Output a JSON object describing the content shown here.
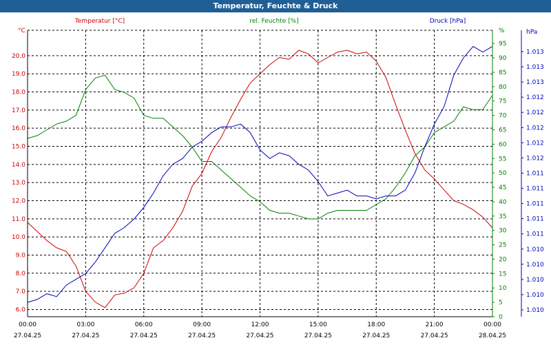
{
  "window": {
    "title": "Temperatur, Feuchte & Druck"
  },
  "chart_data": {
    "type": "line",
    "title": "Temperatur, Feuchte & Druck",
    "x_ticks": [
      {
        "time": "00:00",
        "date": "27.04.25"
      },
      {
        "time": "03:00",
        "date": "27.04.25"
      },
      {
        "time": "06:00",
        "date": "27.04.25"
      },
      {
        "time": "09:00",
        "date": "27.04.25"
      },
      {
        "time": "12:00",
        "date": "27.04.25"
      },
      {
        "time": "15:00",
        "date": "27.04.25"
      },
      {
        "time": "18:00",
        "date": "27.04.25"
      },
      {
        "time": "21:00",
        "date": "27.04.25"
      },
      {
        "time": "00:00",
        "date": "28.04.25"
      }
    ],
    "x_range_hours": [
      0,
      24
    ],
    "axes": {
      "left": {
        "unit": "°C",
        "min": 5.6,
        "max": 21.4,
        "ticks": [
          "6.0",
          "7.0",
          "8.0",
          "9.0",
          "10.0",
          "11.0",
          "12.0",
          "13.0",
          "14.0",
          "15.0",
          "16.0",
          "17.0",
          "18.0",
          "19.0",
          "20.0"
        ]
      },
      "right": {
        "unit": "%",
        "min": 0,
        "max": 99.6,
        "ticks": [
          "0",
          "5",
          "10",
          "15",
          "20",
          "25",
          "30",
          "35",
          "40",
          "45",
          "50",
          "55",
          "60",
          "65",
          "70",
          "75",
          "80",
          "85",
          "90",
          "95"
        ]
      },
      "far_right": {
        "unit": "hPa",
        "ticks": [
          "1.010",
          "1.010",
          "1.010",
          "1.010",
          "1.010",
          "1.011",
          "1.011",
          "1.011",
          "1.011",
          "1.011",
          "1.012",
          "1.012",
          "1.012",
          "1.012",
          "1.012",
          "1.013",
          "1.013",
          "1.013"
        ]
      }
    },
    "series": [
      {
        "name": "Temperatur [°C]",
        "color": "#cc0000",
        "axis": "left",
        "x": [
          0,
          0.5,
          1,
          1.5,
          2,
          2.5,
          3,
          3.5,
          4,
          4.5,
          5,
          5.5,
          6,
          6.5,
          7,
          7.5,
          8,
          8.5,
          9,
          9.5,
          10,
          10.5,
          11,
          11.5,
          12,
          12.5,
          13,
          13.5,
          14,
          14.5,
          15,
          15.5,
          16,
          16.5,
          17,
          17.5,
          18,
          18.5,
          19,
          19.5,
          20,
          20.5,
          21,
          21.5,
          22,
          22.5,
          23,
          23.5,
          24
        ],
        "values": [
          10.8,
          10.3,
          9.8,
          9.4,
          9.2,
          8.4,
          7.0,
          6.4,
          6.1,
          6.8,
          6.9,
          7.2,
          8.0,
          9.4,
          9.8,
          10.5,
          11.4,
          12.8,
          13.5,
          14.7,
          15.5,
          16.6,
          17.6,
          18.5,
          19.0,
          19.5,
          19.9,
          19.8,
          20.3,
          20.1,
          19.6,
          19.9,
          20.2,
          20.3,
          20.1,
          20.2,
          19.7,
          18.8,
          17.3,
          15.9,
          14.6,
          13.7,
          13.2,
          12.6,
          12.0,
          11.8,
          11.5,
          11.1,
          10.5
        ]
      },
      {
        "name": "rel. Feuchte [%]",
        "color": "#008000",
        "axis": "right",
        "x": [
          0,
          0.5,
          1,
          1.5,
          2,
          2.5,
          3,
          3.5,
          4,
          4.5,
          5,
          5.5,
          6,
          6.5,
          7,
          7.5,
          8,
          8.5,
          9,
          9.5,
          10,
          10.5,
          11,
          11.5,
          12,
          12.5,
          13,
          13.5,
          14,
          14.5,
          15,
          15.5,
          16,
          16.5,
          17,
          17.5,
          18,
          18.5,
          19,
          19.5,
          20,
          20.5,
          21,
          21.5,
          22,
          22.5,
          23,
          23.5,
          24
        ],
        "values": [
          62,
          63,
          65,
          67,
          68,
          70,
          79,
          83,
          84,
          79,
          78,
          76,
          70,
          69,
          69,
          66,
          63,
          59,
          54,
          54,
          51,
          48,
          45,
          42,
          40,
          37,
          36,
          36,
          35,
          34,
          34,
          36,
          37,
          37,
          37,
          37,
          39,
          41,
          45,
          50,
          56,
          59,
          64,
          66,
          68,
          73,
          72,
          72,
          77
        ]
      },
      {
        "name": "Druck [hPa]",
        "color": "#0000bb",
        "axis": "right",
        "x": [
          0,
          0.5,
          1,
          1.5,
          2,
          2.5,
          3,
          3.5,
          4,
          4.5,
          5,
          5.5,
          6,
          6.5,
          7,
          7.5,
          8,
          8.5,
          9,
          9.5,
          10,
          10.5,
          11,
          11.5,
          12,
          12.5,
          13,
          13.5,
          14,
          14.5,
          15,
          15.5,
          16,
          16.5,
          17,
          17.5,
          18,
          18.5,
          19,
          19.5,
          20,
          20.5,
          21,
          21.5,
          22,
          22.5,
          23,
          23.5,
          24
        ],
        "values": [
          5,
          6,
          8,
          7,
          11,
          13,
          15,
          19,
          24,
          29,
          31,
          34,
          38,
          43,
          49,
          53,
          55,
          59,
          61,
          64,
          66,
          66,
          67,
          64,
          58,
          55,
          57,
          56,
          53,
          51,
          47,
          42,
          43,
          44,
          42,
          42,
          41,
          42,
          42,
          44,
          50,
          59,
          67,
          73,
          84,
          90,
          94,
          92,
          94
        ]
      }
    ]
  }
}
